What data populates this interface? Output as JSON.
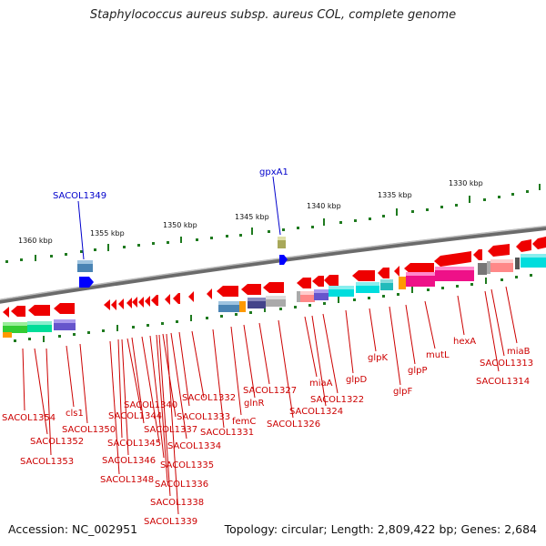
{
  "title": "Staphylococcus aureus subsp. aureus COL, complete genome",
  "footer": {
    "accession": "Accession: NC_002951",
    "summary": "Topology: circular; Length: 2,809,422 bp; Genes: 2,684"
  },
  "colors": {
    "label_red": "#cc0000",
    "label_blue": "#0000cc",
    "backbone": "#888888",
    "tick": "#1f7a1f",
    "arrow": "#ff0000"
  },
  "scale_labels": [
    "1360 kbp",
    "1355 kbp",
    "1350 kbp",
    "1345 kbp",
    "1340 kbp",
    "1335 kbp",
    "1330 kbp"
  ],
  "upper_labels": [
    "SACOL1349",
    "gpxA1"
  ],
  "gene_labels": [
    "SACOL1354",
    "SACOL1352",
    "SACOL1353",
    "cls1",
    "SACOL1350",
    "SACOL1340",
    "SACOL1344",
    "SACOL1345",
    "SACOL1346",
    "SACOL1348",
    "SACOL1337",
    "SACOL1335",
    "SACOL1336",
    "SACOL1338",
    "SACOL1339",
    "SACOL1332",
    "SACOL1333",
    "SACOL1334",
    "SACOL1331",
    "femC",
    "glnR",
    "SACOL1327",
    "SACOL1326",
    "miaA",
    "SACOL1324",
    "SACOL1322",
    "glpD",
    "glpK",
    "glpF",
    "glpP",
    "mutL",
    "hexA",
    "SACOL1313",
    "SACOL1314",
    "miaB"
  ]
}
